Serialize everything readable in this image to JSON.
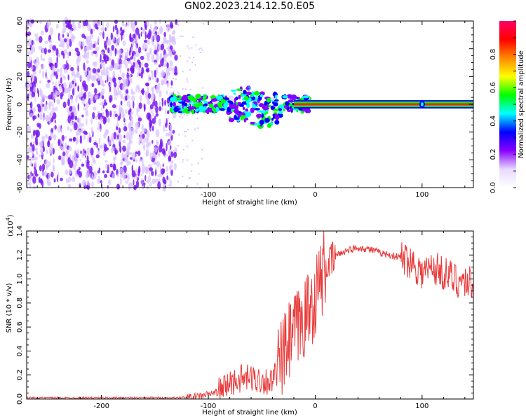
{
  "title": "GN02.2023.214.12.50.E05",
  "chart_data": [
    {
      "type": "heatmap",
      "xlabel": "Height of straight line (km)",
      "ylabel": "Frequency (Hz)",
      "xlim": [
        -270,
        148
      ],
      "ylim": [
        -60,
        60
      ],
      "xticks": [
        -200,
        -100,
        0,
        100
      ],
      "yticks": [
        60,
        40,
        20,
        0,
        -20,
        -40,
        -60
      ],
      "colorbar": {
        "label": "Normalized spectral amplitude",
        "range": [
          0.0,
          1.0
        ],
        "ticks": [
          "0.0",
          "0.2",
          "0.4",
          "0.6",
          "0.8"
        ],
        "colormap": [
          "#ffffff",
          "#e8d8ff",
          "#8800ff",
          "#0000ff",
          "#00ffff",
          "#00ff00",
          "#ffff00",
          "#ff8800",
          "#ff0000",
          "#ff0066"
        ]
      },
      "regions": [
        {
          "x_range": [
            -270,
            -130
          ],
          "freq_range": [
            -60,
            60
          ],
          "amplitude": 0.05
        },
        {
          "x_range": [
            -135,
            -5
          ],
          "freq_range": [
            -15,
            10
          ],
          "amplitude": 0.3
        },
        {
          "x_range": [
            -20,
            148
          ],
          "freq_range": [
            -1,
            1
          ],
          "amplitude": 0.8
        }
      ]
    },
    {
      "type": "line",
      "ylabel": "SNR (10 * v/v)",
      "xlabel": "Height of straight line (km)",
      "y_multiplier": "(x10",
      "y_multiplier_exp": "4",
      "y_multiplier_close": ")",
      "xlim": [
        -270,
        148
      ],
      "ylim": [
        0.0,
        1.4
      ],
      "xticks": [
        -200,
        -100,
        0,
        100
      ],
      "yticks": [
        "0.0",
        "0.2",
        "0.4",
        "0.6",
        "0.8",
        "1.0",
        "1.2",
        "1.4"
      ],
      "series": [
        {
          "color": "#e83a3a",
          "x": [
            -270,
            -200,
            -130,
            -110,
            -90,
            -80,
            -70,
            -60,
            -50,
            -40,
            -30,
            -20,
            -15,
            -10,
            -5,
            0,
            5,
            10,
            20,
            30,
            40,
            50,
            60,
            70,
            80,
            90,
            100,
            110,
            120,
            130,
            140,
            148
          ],
          "y": [
            0.01,
            0.01,
            0.01,
            0.02,
            0.06,
            0.13,
            0.17,
            0.17,
            0.16,
            0.14,
            0.35,
            0.55,
            0.6,
            0.68,
            0.75,
            0.85,
            1.0,
            1.1,
            1.2,
            1.24,
            1.26,
            1.25,
            1.22,
            1.2,
            1.18,
            1.15,
            1.05,
            1.1,
            1.05,
            1.0,
            0.98,
            0.97
          ]
        }
      ]
    }
  ]
}
